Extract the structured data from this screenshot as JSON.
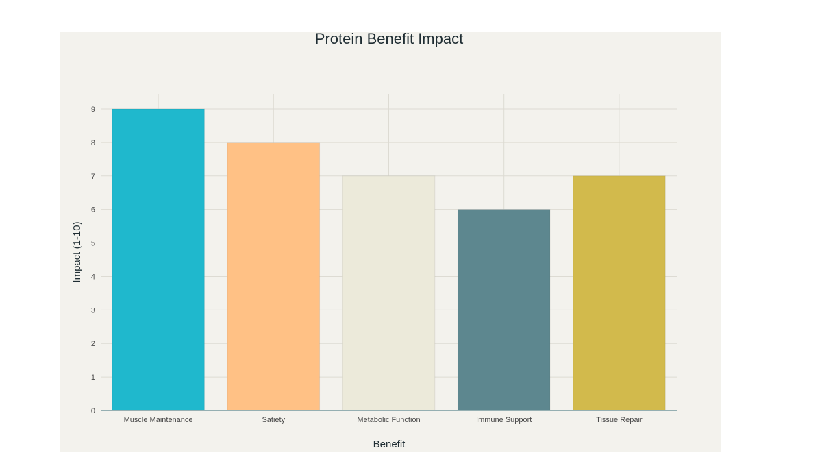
{
  "chart_data": {
    "type": "bar",
    "title": "Protein Benefit Impact",
    "xlabel": "Benefit",
    "ylabel": "Impact (1-10)",
    "categories": [
      "Muscle Maintenance",
      "Satiety",
      "Metabolic Function",
      "Immune Support",
      "Tissue Repair"
    ],
    "values": [
      9,
      8,
      7,
      6,
      7
    ],
    "colors": [
      "#1fb8cd",
      "#ffc185",
      "#eceada",
      "#5d878f",
      "#d2ba4c"
    ],
    "ylim": [
      0,
      9.45
    ],
    "yticks": [
      0,
      1,
      2,
      3,
      4,
      5,
      6,
      7,
      8,
      9
    ],
    "grid": true,
    "legend": "none",
    "plot_background": "#f3f2ed",
    "axis_line_color": "#5d878f",
    "grid_color": "#dddbd3"
  }
}
